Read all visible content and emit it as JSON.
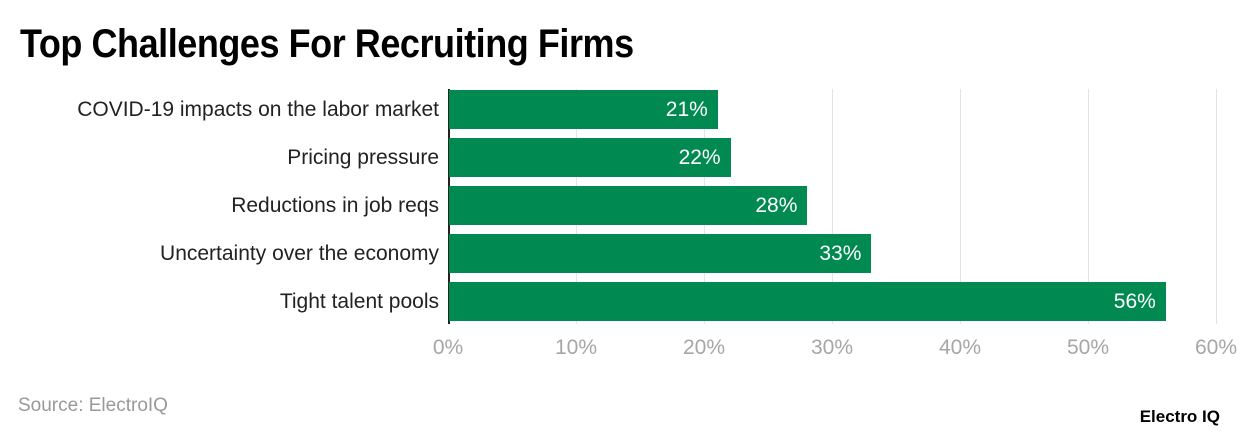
{
  "title": "Top Challenges For Recruiting Firms",
  "source": "Source: ElectroIQ",
  "brand": "Electro IQ",
  "colors": {
    "bar": "#008a52",
    "grid": "#e3e3e3",
    "tick": "#a6a6a6"
  },
  "chart_data": {
    "type": "bar",
    "orientation": "horizontal",
    "title": "Top Challenges For Recruiting Firms",
    "xlabel": "",
    "ylabel": "",
    "categories": [
      "COVID-19 impacts on the labor market",
      "Pricing pressure",
      "Reductions in job reqs",
      "Uncertainty over the economy",
      "Tight talent pools"
    ],
    "values": [
      21,
      22,
      28,
      33,
      56
    ],
    "value_labels": [
      "21%",
      "22%",
      "28%",
      "33%",
      "56%"
    ],
    "xlim": [
      0,
      60
    ],
    "xticks": [
      "0%",
      "10%",
      "20%",
      "30%",
      "40%",
      "50%",
      "60%"
    ],
    "grid": true,
    "legend": null
  }
}
